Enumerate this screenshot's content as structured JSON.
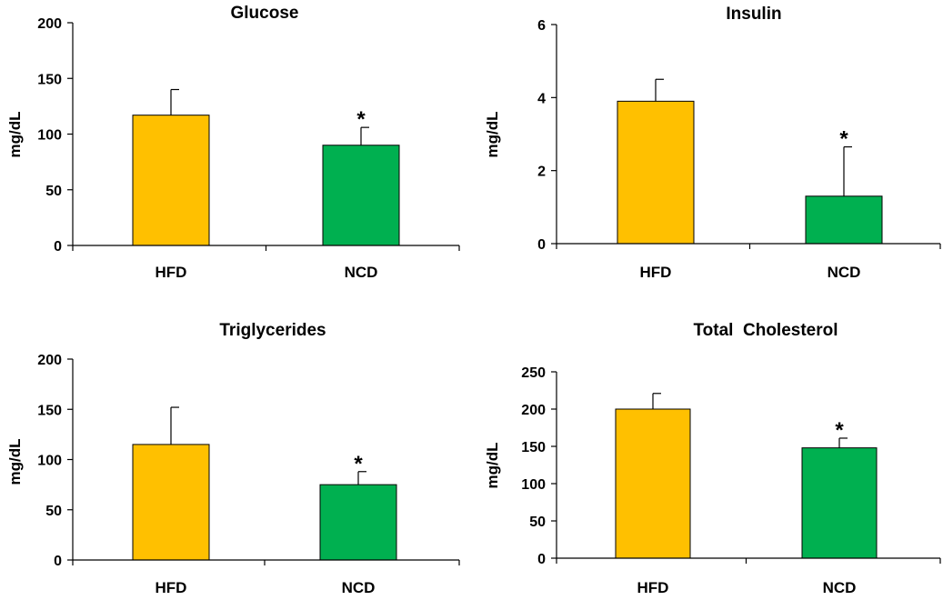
{
  "colors": {
    "hfd": "#ffc000",
    "ncd": "#00b050",
    "axis": "#000000"
  },
  "chart_data": [
    {
      "type": "bar",
      "title": "Glucose",
      "ylabel": "mg/dL",
      "xlabel": "",
      "categories": [
        "HFD",
        "NCD"
      ],
      "values": [
        117,
        90
      ],
      "errors": [
        23,
        16
      ],
      "significance": [
        "",
        "*"
      ],
      "ylim": [
        0,
        200
      ],
      "yticks": [
        0,
        50,
        100,
        150,
        200
      ]
    },
    {
      "type": "bar",
      "title": "Insulin",
      "ylabel": "mg/dL",
      "xlabel": "",
      "categories": [
        "HFD",
        "NCD"
      ],
      "values": [
        3.9,
        1.3
      ],
      "errors": [
        0.6,
        1.35
      ],
      "significance": [
        "",
        "*"
      ],
      "ylim": [
        0,
        6
      ],
      "yticks": [
        0,
        2,
        4,
        6
      ]
    },
    {
      "type": "bar",
      "title": "Triglycerides",
      "ylabel": "mg/dL",
      "xlabel": "",
      "categories": [
        "HFD",
        "NCD"
      ],
      "values": [
        115,
        75
      ],
      "errors": [
        37,
        13
      ],
      "significance": [
        "",
        "*"
      ],
      "ylim": [
        0,
        200
      ],
      "yticks": [
        0,
        50,
        100,
        150,
        200
      ]
    },
    {
      "type": "bar",
      "title": "Total  Cholesterol",
      "ylabel": "mg/dL",
      "xlabel": "",
      "categories": [
        "HFD",
        "NCD"
      ],
      "values": [
        200,
        148
      ],
      "errors": [
        21,
        13
      ],
      "significance": [
        "",
        "*"
      ],
      "ylim": [
        0,
        250
      ],
      "yticks": [
        0,
        50,
        100,
        150,
        200,
        250
      ]
    }
  ]
}
